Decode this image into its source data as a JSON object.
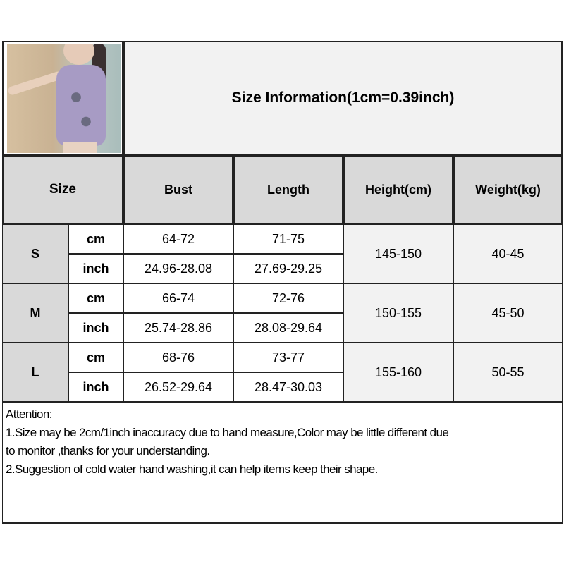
{
  "title": "Size Information(1cm=0.39inch)",
  "photo": {
    "icon": "product-photo-purple-dress"
  },
  "headers": {
    "size": "Size",
    "bust": "Bust",
    "length": "Length",
    "height": "Height(cm)",
    "weight": "Weight(kg)"
  },
  "sizes": [
    {
      "size": "S",
      "cm_label": "cm",
      "inch_label": "inch",
      "bust_cm": "64-72",
      "length_cm": "71-75",
      "bust_inch": "24.96-28.08",
      "length_inch": "27.69-29.25",
      "height": "145-150",
      "weight": "40-45"
    },
    {
      "size": "M",
      "cm_label": "cm",
      "inch_label": "inch",
      "bust_cm": "66-74",
      "length_cm": "72-76",
      "bust_inch": "25.74-28.86",
      "length_inch": "28.08-29.64",
      "height": "150-155",
      "weight": "45-50"
    },
    {
      "size": "L",
      "cm_label": "cm",
      "inch_label": "inch",
      "bust_cm": "68-76",
      "length_cm": "73-77",
      "bust_inch": "26.52-29.64",
      "length_inch": "28.47-30.03",
      "height": "155-160",
      "weight": "50-55"
    }
  ],
  "notes": {
    "heading": "Attention:",
    "line1": "1.Size may be 2cm/1inch inaccuracy due to hand measure,Color may be little different due",
    "line1b": "to monitor ,thanks for your understanding.",
    "line2": "2.Suggestion of cold water hand washing,it can help items keep their shape."
  }
}
